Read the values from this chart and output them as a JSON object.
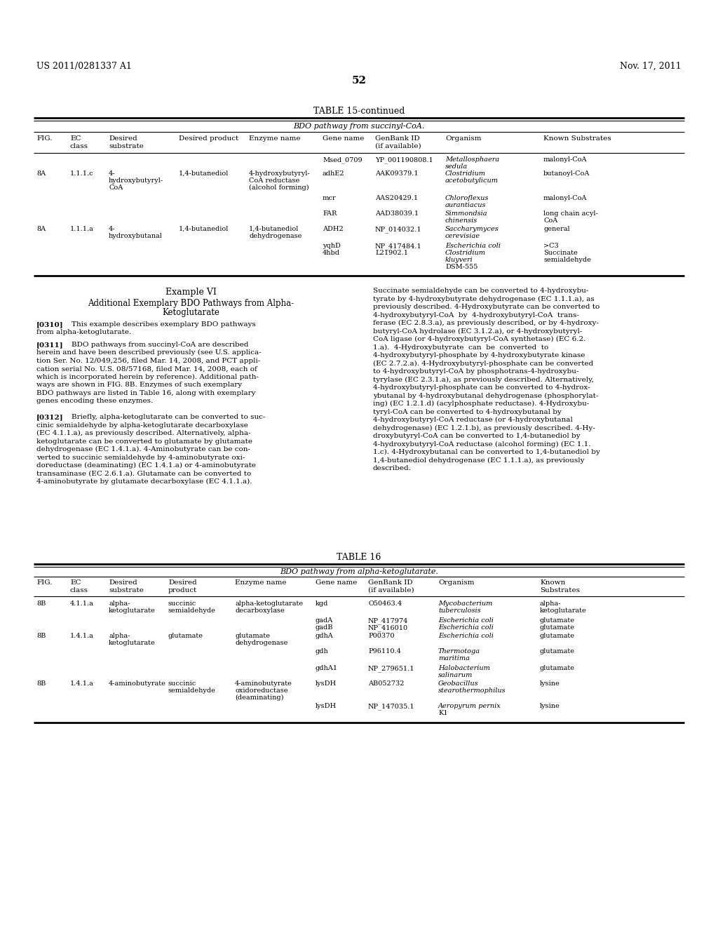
{
  "header_left": "US 2011/0281337 A1",
  "header_right": "Nov. 17, 2011",
  "page_number": "52",
  "bg_color": "#ffffff",
  "text_color": "#000000"
}
